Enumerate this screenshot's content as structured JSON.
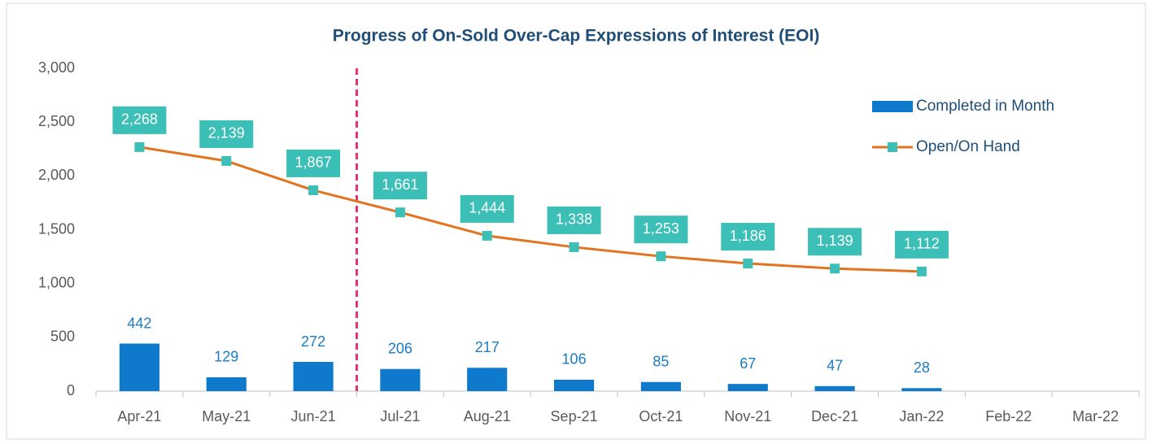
{
  "chart_data": {
    "type": "bar",
    "title": "Progress of On-Sold Over-Cap Expressions of Interest (EOI)",
    "categories": [
      "Apr-21",
      "May-21",
      "Jun-21",
      "Jul-21",
      "Aug-21",
      "Sep-21",
      "Oct-21",
      "Nov-21",
      "Dec-21",
      "Jan-22",
      "Feb-22",
      "Mar-22"
    ],
    "series": [
      {
        "name": "Completed in Month",
        "type": "bar",
        "color": "#0f7acb",
        "values": [
          442,
          129,
          272,
          206,
          217,
          106,
          85,
          67,
          47,
          28,
          null,
          null
        ]
      },
      {
        "name": "Open/On Hand",
        "type": "line",
        "color": "#e2731f",
        "marker_color": "#3bbfb6",
        "values": [
          2268,
          2139,
          1867,
          1661,
          1444,
          1338,
          1253,
          1186,
          1139,
          1112,
          null,
          null
        ],
        "value_labels": [
          "2,268",
          "2,139",
          "1,867",
          "1,661",
          "1,444",
          "1,338",
          "1,253",
          "1,186",
          "1,139",
          "1,112",
          null,
          null
        ]
      }
    ],
    "ylim": [
      0,
      3000
    ],
    "yticks": [
      0,
      500,
      {
        "value": 1000,
        "label": "1,000"
      },
      {
        "value": 1500,
        "label": "1,500"
      },
      {
        "value": 2000,
        "label": "2,000"
      },
      {
        "value": 2500,
        "label": "2,500"
      },
      {
        "value": 3000,
        "label": "3,000"
      }
    ],
    "grid": false,
    "legend": "top-right"
  }
}
